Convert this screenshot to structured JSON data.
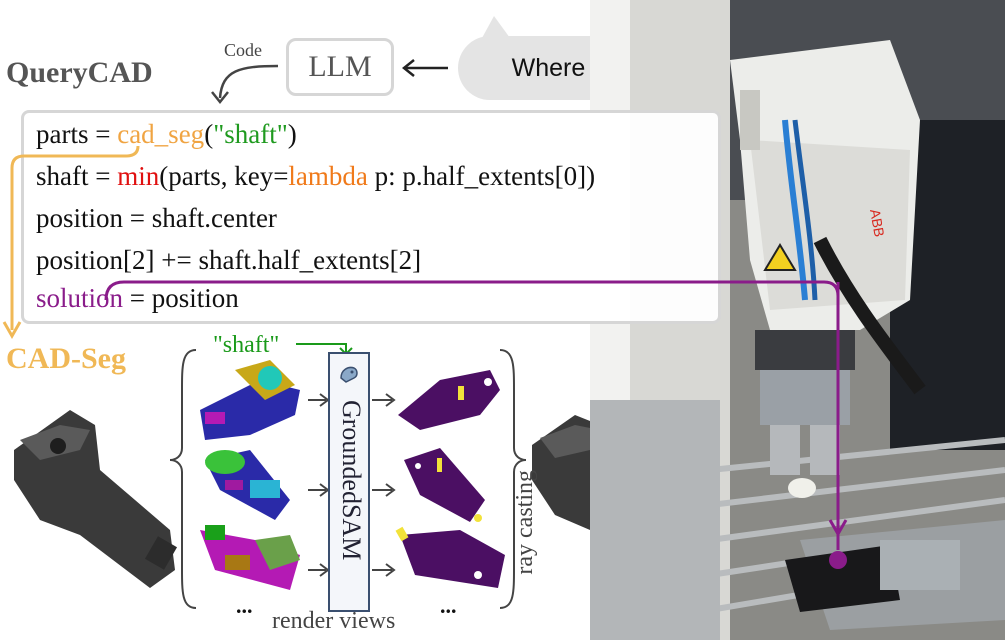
{
  "header": {
    "title": "QueryCAD",
    "code_label": "Code",
    "llm_label": "LLM",
    "question": "Where is the tip of the thinnest shaft?"
  },
  "code": {
    "l1_var": "parts = ",
    "l1_fn": "cad_seg",
    "l1_open": "(",
    "l1_arg": "\"shaft\"",
    "l1_close": ")",
    "l2_var": "shaft = ",
    "l2_fn": "min",
    "l2_mid": "(parts, key=",
    "l2_kw": "lambda",
    "l2_end": " p: p.half_extents[0])",
    "l3": "position = shaft.center",
    "l4": "position[2] += shaft.half_extents[2]",
    "l5_var": "solution",
    "l5_end": " = position"
  },
  "pipeline": {
    "title": "CAD-Seg",
    "query": "\"shaft\"",
    "model": "GroundedSAM",
    "ellipsis": "...",
    "render_label": "render views",
    "ray_label": "ray casting"
  },
  "colors": {
    "accent_orange": "#f0b856",
    "code_green": "#1f9a1f",
    "code_red": "#e01010",
    "purple": "#8a1c8a",
    "mask_purple": "#4b0f63",
    "shaft_yellow": "#f2e23a",
    "tip_green": "#1d8a1d"
  }
}
